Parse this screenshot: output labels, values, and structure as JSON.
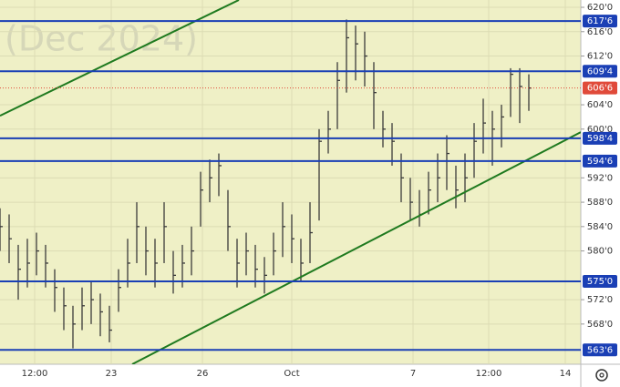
{
  "chart_data": {
    "type": "hlc",
    "watermark": "(Dec 2024)",
    "x": [
      0,
      1,
      2,
      3,
      4,
      5,
      6,
      7,
      8,
      9,
      10,
      11,
      12,
      13,
      14,
      15,
      16,
      17,
      18,
      19,
      20,
      21,
      22,
      23,
      24,
      25,
      26,
      27,
      28,
      29,
      30,
      31,
      32,
      33,
      34,
      35,
      36,
      37,
      38,
      39,
      40,
      41,
      42,
      43,
      44,
      45,
      46,
      47,
      48,
      49,
      50,
      51,
      52,
      53,
      54,
      55,
      56,
      57,
      58
    ],
    "high": [
      587,
      586,
      581,
      582,
      583,
      581,
      577,
      574,
      571,
      574,
      575,
      573,
      571,
      577,
      582,
      588,
      584,
      582,
      588,
      580,
      581,
      584,
      593,
      595,
      596,
      590,
      582,
      583,
      581,
      579,
      583,
      588,
      586,
      582,
      588,
      600,
      603,
      611,
      618,
      617,
      616,
      611,
      603,
      601,
      596,
      592,
      590,
      593,
      596,
      599,
      594,
      596,
      601,
      605,
      603,
      604,
      610,
      610,
      609
    ],
    "low": [
      580,
      578,
      572,
      574,
      576,
      574,
      570,
      567,
      564,
      567,
      568,
      566,
      565,
      570,
      574,
      578,
      576,
      574,
      578,
      573,
      574,
      576,
      584,
      588,
      589,
      580,
      574,
      576,
      574,
      573,
      576,
      579,
      578,
      575,
      578,
      585,
      596,
      600,
      606,
      608,
      607,
      600,
      597,
      594,
      588,
      585,
      584,
      586,
      588,
      590,
      587,
      588,
      592,
      596,
      594,
      597,
      602,
      601,
      603
    ],
    "close": [
      584,
      582,
      577,
      578,
      580,
      578,
      574,
      571,
      568,
      571,
      572,
      570,
      567,
      574,
      578,
      584,
      580,
      578,
      584,
      576,
      578,
      580,
      590,
      592,
      594,
      584,
      578,
      580,
      577,
      576,
      580,
      584,
      582,
      578,
      583,
      598,
      600,
      608,
      615,
      614,
      612,
      606,
      600,
      598,
      592,
      588,
      586,
      590,
      592,
      596,
      590,
      592,
      598,
      601,
      600,
      602,
      609,
      607,
      606.75
    ],
    "bar_color": "#3a3a3a",
    "xlim": [
      0,
      63.7
    ],
    "xticks": [
      {
        "value": 3.8,
        "label": "12:00"
      },
      {
        "value": 12.2,
        "label": "23"
      },
      {
        "value": 22.2,
        "label": "26"
      },
      {
        "value": 32,
        "label": "Oct"
      },
      {
        "value": 45.3,
        "label": "7"
      },
      {
        "value": 53.6,
        "label": "12:00"
      },
      {
        "value": 62,
        "label": "14"
      }
    ],
    "ylim": [
      561.4,
      621.2
    ],
    "yticks": [
      {
        "value": 620,
        "label": "620'0"
      },
      {
        "value": 616,
        "label": "616'0"
      },
      {
        "value": 612,
        "label": "612'0"
      },
      {
        "value": 604,
        "label": "604'0"
      },
      {
        "value": 600,
        "label": "600'0"
      },
      {
        "value": 592,
        "label": "592'0"
      },
      {
        "value": 588,
        "label": "588'0"
      },
      {
        "value": 584,
        "label": "584'0"
      },
      {
        "value": 580,
        "label": "580'0"
      },
      {
        "value": 572,
        "label": "572'0"
      },
      {
        "value": 568,
        "label": "568'0"
      }
    ],
    "levels": [
      {
        "value": 617.75,
        "label": "617'6",
        "color": "#1a3fb5"
      },
      {
        "value": 609.5,
        "label": "609'4",
        "color": "#1a3fb5"
      },
      {
        "value": 598.5,
        "label": "598'4",
        "color": "#1a3fb5"
      },
      {
        "value": 594.75,
        "label": "594'6",
        "color": "#1a3fb5"
      },
      {
        "value": 575,
        "label": "575'0",
        "color": "#1a3fb5"
      },
      {
        "value": 563.75,
        "label": "563'6",
        "color": "#1a3fb5"
      }
    ],
    "last_price": {
      "value": 606.75,
      "label": "606'6",
      "color": "#e04a3a"
    },
    "trendlines": [
      {
        "x": [
          0,
          26.2
        ],
        "y": [
          602.2,
          621.2
        ],
        "color": "#1f7a1f"
      },
      {
        "x": [
          14.5,
          63.7
        ],
        "y": [
          561.4,
          599.5
        ],
        "color": "#1f7a1f"
      }
    ]
  }
}
